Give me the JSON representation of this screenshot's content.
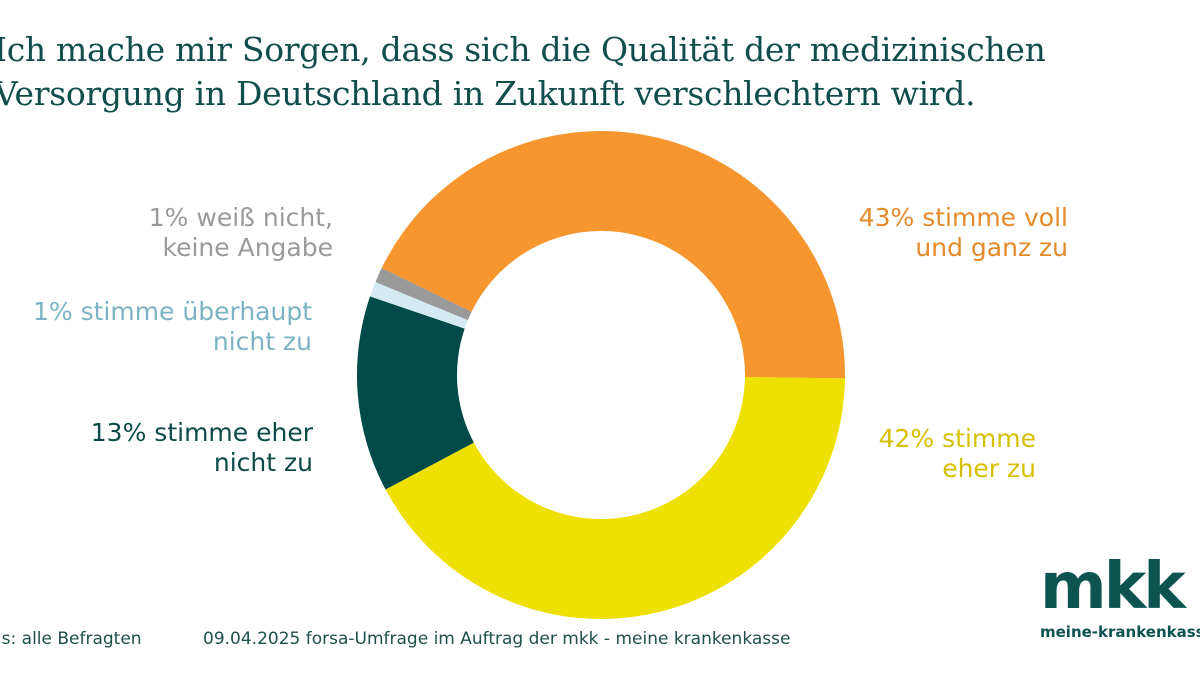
{
  "title": {
    "line1": "Ich mache mir Sorgen, dass sich die Qualität der medizinischen",
    "line2": "Versorgung in Deutschland in Zukunft verschlechtern wird."
  },
  "chart_data": {
    "type": "pie",
    "donut": true,
    "title": "Ich mache mir Sorgen, dass sich die Qualität der medizinischen Versorgung in Deutschland in Zukunft verschlechtern wird.",
    "unit": "%",
    "slices": [
      {
        "label_line1": "43% stimme voll",
        "label_line2": "und ganz zu",
        "category": "stimme voll und ganz zu",
        "value": 43,
        "color": "#f7962f",
        "text_color": "#e58a28"
      },
      {
        "label_line1": "42% stimme",
        "label_line2": "eher zu",
        "category": "stimme eher zu",
        "value": 42,
        "color": "#eee000",
        "text_color": "#d6bf00"
      },
      {
        "label_line1": "13% stimme eher",
        "label_line2": "nicht zu",
        "category": "stimme eher nicht zu",
        "value": 13,
        "color": "#004b49",
        "text_color": "#0b4a48"
      },
      {
        "label_line1": "1% stimme überhaupt",
        "label_line2": "nicht zu",
        "category": "stimme überhaupt nicht zu",
        "value": 1,
        "color": "#d4e9f1",
        "text_color": "#7cb3c4"
      },
      {
        "label_line1": "1% weiß nicht,",
        "label_line2": "keine Angabe",
        "category": "weiß nicht, keine Angabe",
        "value": 1,
        "color": "#9a9a9a",
        "text_color": "#9a9a9a"
      }
    ]
  },
  "footer": {
    "basis": "Basis: alle Befragten",
    "source": "09.04.2025 forsa-Umfrage im Auftrag der mkk - meine krankenkasse"
  },
  "logo": {
    "mark": "mkk",
    "url": "meine-krankenkasse.de"
  }
}
